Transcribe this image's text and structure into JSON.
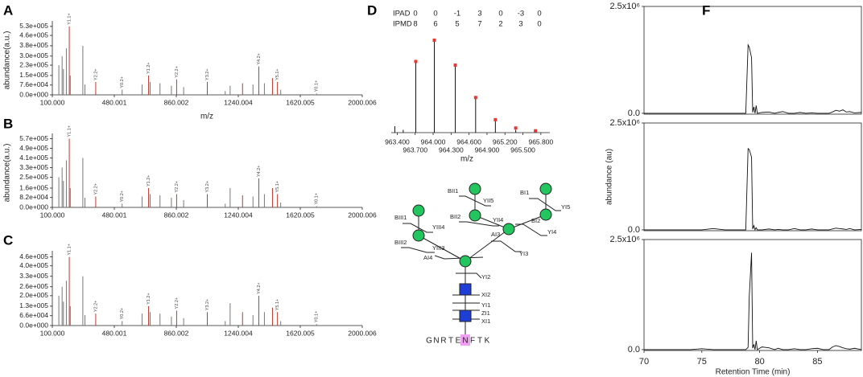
{
  "panel_labels": [
    "A",
    "B",
    "C",
    "D",
    "F"
  ],
  "chart_data": [
    {
      "type": "bar",
      "ylabel": "abundance(a.u.)",
      "xlabel": "m/z",
      "xlim": [
        100,
        2000.006
      ],
      "xticks": [
        {
          "value": 100,
          "label": "100.000"
        },
        {
          "value": 480.001,
          "label": "480.001"
        },
        {
          "value": 860.002,
          "label": "860.002"
        },
        {
          "value": 1240.004,
          "label": "1240.004"
        },
        {
          "value": 1620.005,
          "label": "1620.005"
        },
        {
          "value": 2000.006,
          "label": "2000.006"
        }
      ],
      "ylim": [
        0,
        560000
      ],
      "yticks": [
        {
          "value": 0,
          "label": "0.0e+000"
        },
        {
          "value": 76000,
          "label": "7.6e+004"
        },
        {
          "value": 150000,
          "label": "1.5e+005"
        },
        {
          "value": 230000,
          "label": "2.3e+005"
        },
        {
          "value": 300000,
          "label": "3.0e+005"
        },
        {
          "value": 380000,
          "label": "3.8e+005"
        },
        {
          "value": 460000,
          "label": "4.6e+005"
        },
        {
          "value": 530000,
          "label": "5.3e+005"
        }
      ],
      "series": [
        {
          "color": "#c0392b",
          "style": "stick",
          "x": [
            204,
            366,
            690,
            862,
            1050,
            1266,
            1366,
            1450,
            1480
          ],
          "values": [
            530000,
            100000,
            150000,
            120000,
            100000,
            90000,
            220000,
            130000,
            100000
          ]
        },
        {
          "color": "#777777",
          "style": "stick",
          "x": [
            140,
            160,
            168,
            186,
            210,
            287,
            300,
            528,
            650,
            700,
            760,
            830,
            905,
            1160,
            1190,
            1330,
            1400,
            1500,
            1720
          ],
          "values": [
            230000,
            300000,
            200000,
            360000,
            150000,
            380000,
            80000,
            40000,
            80000,
            100000,
            90000,
            70000,
            60000,
            30000,
            70000,
            80000,
            90000,
            40000,
            10000
          ]
        }
      ],
      "annotations": [
        {
          "x": 204,
          "label": "Y1.1+"
        },
        {
          "x": 366,
          "label": "Y2.2+"
        },
        {
          "x": 528,
          "label": "Y0.2+"
        },
        {
          "x": 690,
          "label": "Y1.2+"
        },
        {
          "x": 862,
          "label": "Y2.2+"
        },
        {
          "x": 1050,
          "label": "Y3.2+"
        },
        {
          "x": 1366,
          "label": "Y4.2+"
        },
        {
          "x": 1480,
          "label": "Y5.1+"
        },
        {
          "x": 1720,
          "label": "Y0.1+"
        }
      ]
    },
    {
      "type": "bar",
      "ylabel": "abundance(a.u.)",
      "xlim": [
        100,
        2000.006
      ],
      "xticks": [
        {
          "value": 100,
          "label": "100.000"
        },
        {
          "value": 480.001,
          "label": "480.001"
        },
        {
          "value": 860.002,
          "label": "860.002"
        },
        {
          "value": 1240.004,
          "label": "1240.004"
        },
        {
          "value": 1620.005,
          "label": "1620.005"
        },
        {
          "value": 2000.006,
          "label": "2000.006"
        }
      ],
      "ylim": [
        0,
        600000
      ],
      "yticks": [
        {
          "value": 0,
          "label": "0.0e+000"
        },
        {
          "value": 82000,
          "label": "8.2e+004"
        },
        {
          "value": 160000,
          "label": "1.6e+005"
        },
        {
          "value": 250000,
          "label": "2.5e+005"
        },
        {
          "value": 330000,
          "label": "3.3e+005"
        },
        {
          "value": 410000,
          "label": "4.1e+005"
        },
        {
          "value": 490000,
          "label": "4.9e+005"
        },
        {
          "value": 570000,
          "label": "5.7e+005"
        }
      ],
      "series": [
        {
          "color": "#c0392b",
          "style": "stick",
          "x": [
            204,
            366,
            690,
            862,
            1050,
            1266,
            1366,
            1450,
            1480
          ],
          "values": [
            570000,
            90000,
            160000,
            110000,
            110000,
            100000,
            240000,
            160000,
            110000
          ]
        },
        {
          "color": "#777777",
          "style": "stick",
          "x": [
            140,
            160,
            168,
            186,
            210,
            287,
            300,
            528,
            650,
            700,
            760,
            830,
            905,
            1160,
            1190,
            1330,
            1400,
            1500,
            1720
          ],
          "values": [
            250000,
            330000,
            220000,
            390000,
            160000,
            410000,
            80000,
            30000,
            90000,
            110000,
            100000,
            80000,
            60000,
            30000,
            160000,
            90000,
            110000,
            40000,
            10000
          ]
        }
      ],
      "annotations": [
        {
          "x": 204,
          "label": "Y1.1+"
        },
        {
          "x": 366,
          "label": "Y2.2+"
        },
        {
          "x": 528,
          "label": "Y0.2+"
        },
        {
          "x": 690,
          "label": "Y1.2+"
        },
        {
          "x": 862,
          "label": "Y2.2+"
        },
        {
          "x": 1050,
          "label": "Y3.2+"
        },
        {
          "x": 1366,
          "label": "Y4.2+"
        },
        {
          "x": 1480,
          "label": "Y5.1+"
        },
        {
          "x": 1720,
          "label": "Y0.1+"
        }
      ]
    },
    {
      "type": "bar",
      "xlim": [
        100,
        2000.006
      ],
      "xticks": [
        {
          "value": 100,
          "label": "100.000"
        },
        {
          "value": 480.001,
          "label": "480.001"
        },
        {
          "value": 860.002,
          "label": "860.002"
        },
        {
          "value": 1240.004,
          "label": "1240.004"
        },
        {
          "value": 1620.005,
          "label": "1620.005"
        },
        {
          "value": 2000.006,
          "label": "2000.006"
        }
      ],
      "ylim": [
        0,
        490000
      ],
      "yticks": [
        {
          "value": 0,
          "label": "0.0e+000"
        },
        {
          "value": 66000,
          "label": "6.6e+004"
        },
        {
          "value": 130000,
          "label": "1.3e+005"
        },
        {
          "value": 200000,
          "label": "2.0e+005"
        },
        {
          "value": 260000,
          "label": "2.6e+005"
        },
        {
          "value": 330000,
          "label": "3.3e+005"
        },
        {
          "value": 400000,
          "label": "4.0e+005"
        },
        {
          "value": 460000,
          "label": "4.6e+005"
        }
      ],
      "series": [
        {
          "color": "#c0392b",
          "style": "stick",
          "x": [
            204,
            366,
            690,
            862,
            1050,
            1266,
            1366,
            1450,
            1480
          ],
          "values": [
            460000,
            80000,
            130000,
            100000,
            90000,
            90000,
            200000,
            120000,
            90000
          ]
        },
        {
          "color": "#777777",
          "style": "stick",
          "x": [
            140,
            160,
            168,
            186,
            210,
            287,
            300,
            528,
            650,
            700,
            760,
            830,
            905,
            1160,
            1190,
            1330,
            1400,
            1500,
            1720
          ],
          "values": [
            200000,
            260000,
            160000,
            300000,
            130000,
            330000,
            70000,
            30000,
            80000,
            90000,
            80000,
            60000,
            50000,
            30000,
            150000,
            70000,
            90000,
            30000,
            10000
          ]
        }
      ],
      "annotations": [
        {
          "x": 204,
          "label": "Y1.1+"
        },
        {
          "x": 366,
          "label": "Y2.2+"
        },
        {
          "x": 528,
          "label": "Y0.2+"
        },
        {
          "x": 690,
          "label": "Y1.2+"
        },
        {
          "x": 862,
          "label": "Y2.2+"
        },
        {
          "x": 1050,
          "label": "Y3.2+"
        },
        {
          "x": 1366,
          "label": "Y4.2+"
        },
        {
          "x": 1480,
          "label": "Y5.1+"
        },
        {
          "x": 1720,
          "label": "Y0.1+"
        }
      ]
    },
    {
      "type": "bar",
      "xlabel": "m/z",
      "table": {
        "rows": [
          [
            "IPAD",
            0,
            0,
            -1,
            3,
            0,
            -3,
            0
          ],
          [
            "IPMD",
            8,
            6,
            5,
            7,
            2,
            3,
            0
          ]
        ]
      },
      "xlim": [
        963.3,
        965.95
      ],
      "xticks": [
        {
          "value": 963.4,
          "label": "963.400"
        },
        {
          "value": 963.7,
          "label": "963.700"
        },
        {
          "value": 964.0,
          "label": "964.000"
        },
        {
          "value": 964.3,
          "label": "964.300"
        },
        {
          "value": 964.6,
          "label": "964.600"
        },
        {
          "value": 964.9,
          "label": "964.900"
        },
        {
          "value": 965.2,
          "label": "965.200"
        },
        {
          "value": 965.5,
          "label": "965.500"
        },
        {
          "value": 965.8,
          "label": "965.800"
        }
      ],
      "ylim": [
        0,
        100
      ],
      "series": [
        {
          "color": "#111111",
          "style": "stick",
          "x": [
            963.36,
            963.5,
            963.71,
            964.02,
            964.37,
            964.71,
            965.04,
            965.38,
            965.71
          ],
          "values": [
            7,
            3,
            76.5,
            100,
            72,
            37,
            13,
            3,
            2
          ]
        },
        {
          "color": "#e53935",
          "style": "dot",
          "x": [
            963.71,
            964.02,
            964.37,
            964.71,
            965.04,
            965.38,
            965.71
          ],
          "values": [
            77,
            100,
            73,
            38,
            14,
            5,
            2
          ]
        }
      ]
    },
    {
      "type": "line",
      "xlim": [
        70,
        88.8
      ],
      "ylim": [
        -20000,
        2500000
      ],
      "yticks": [
        {
          "value": 0,
          "label": "0.0"
        },
        {
          "value": 2500000,
          "label": "2.5x10⁶"
        }
      ],
      "x": [
        70,
        71,
        72,
        73,
        74,
        75,
        76,
        77,
        78,
        78.8,
        79.0,
        79.1,
        79.3,
        79.4,
        79.5,
        79.6,
        79.7,
        79.8,
        80.2,
        80.8,
        81.3,
        81.6,
        82,
        82.5,
        83,
        83.5,
        84,
        84.5,
        85,
        85.5,
        86,
        86.3,
        86.6,
        86.9,
        87.2,
        87.5,
        87.8,
        88.2,
        88.8
      ],
      "series": [
        {
          "color": "#111111",
          "values": [
            0,
            0,
            0,
            0,
            0,
            0,
            0,
            0,
            0,
            0,
            1600000,
            1550000,
            1300000,
            20000,
            150000,
            0,
            180000,
            0,
            20000,
            30000,
            0,
            20000,
            40000,
            0,
            0,
            20000,
            0,
            10000,
            0,
            0,
            0,
            30000,
            70000,
            50000,
            80000,
            30000,
            40000,
            10000,
            20000
          ]
        }
      ]
    },
    {
      "type": "line",
      "ylabel": "abundance (au)",
      "xlim": [
        70,
        88.8
      ],
      "ylim": [
        -20000,
        2500000
      ],
      "yticks": [
        {
          "value": 0,
          "label": "0.0"
        },
        {
          "value": 2500000,
          "label": "2.5x10⁶"
        }
      ],
      "x": [
        70,
        71,
        72,
        73,
        74,
        75,
        76,
        77,
        78,
        78.8,
        79.0,
        79.1,
        79.3,
        79.4,
        79.5,
        79.6,
        79.7,
        79.8,
        80.2,
        80.8,
        81.3,
        81.6,
        82,
        82.5,
        83,
        83.5,
        84,
        84.5,
        85,
        85.5,
        86,
        86.3,
        86.6,
        86.9,
        87.2,
        87.5,
        87.8,
        88.2,
        88.8
      ],
      "series": [
        {
          "color": "#111111",
          "values": [
            0,
            0,
            0,
            0,
            0,
            0,
            30000,
            0,
            0,
            0,
            1900000,
            1880000,
            1700000,
            20000,
            100000,
            0,
            50000,
            0,
            0,
            20000,
            0,
            10000,
            0,
            0,
            30000,
            0,
            0,
            20000,
            0,
            0,
            0,
            20000,
            40000,
            30000,
            20000,
            10000,
            30000,
            0,
            10000
          ]
        }
      ]
    },
    {
      "type": "line",
      "xlabel": "Retention Time (min)",
      "xlim": [
        70,
        88.8
      ],
      "xticks": [
        70,
        75,
        80,
        85
      ],
      "ylim": [
        -20000,
        2500000
      ],
      "yticks": [
        {
          "value": 0,
          "label": "0.0"
        },
        {
          "value": 2500000,
          "label": "2.5x10⁶"
        }
      ],
      "x": [
        70,
        71,
        72,
        73,
        74,
        75,
        76,
        77,
        78,
        78.8,
        79.0,
        79.1,
        79.3,
        79.4,
        79.5,
        79.6,
        79.7,
        79.8,
        80.2,
        80.8,
        81.3,
        81.6,
        82,
        82.5,
        83,
        83.5,
        84,
        84.5,
        85,
        85.5,
        86,
        86.3,
        86.6,
        86.9,
        87.2,
        87.5,
        87.8,
        88.2,
        88.8
      ],
      "series": [
        {
          "color": "#111111",
          "values": [
            0,
            0,
            0,
            0,
            0,
            20000,
            0,
            0,
            0,
            0,
            50000,
            1200000,
            2200000,
            30000,
            120000,
            0,
            200000,
            0,
            60000,
            40000,
            0,
            30000,
            0,
            0,
            20000,
            0,
            0,
            20000,
            30000,
            0,
            0,
            60000,
            90000,
            70000,
            40000,
            20000,
            10000,
            30000,
            0
          ]
        }
      ]
    }
  ],
  "glycan": {
    "labels": [
      "BII1",
      "YII5",
      "BI1",
      "YI5",
      "BIII1",
      "YIII4",
      "BII2",
      "YII4",
      "BI2",
      "YI4",
      "AI3",
      "BIII2",
      "YIII3",
      "AI4",
      "YI3",
      "YI2",
      "XI2",
      "YI1",
      "ZI1",
      "XI1"
    ],
    "sequence": [
      "G",
      "N",
      "R",
      "T",
      "E",
      "N",
      "F",
      "T",
      "K"
    ]
  }
}
